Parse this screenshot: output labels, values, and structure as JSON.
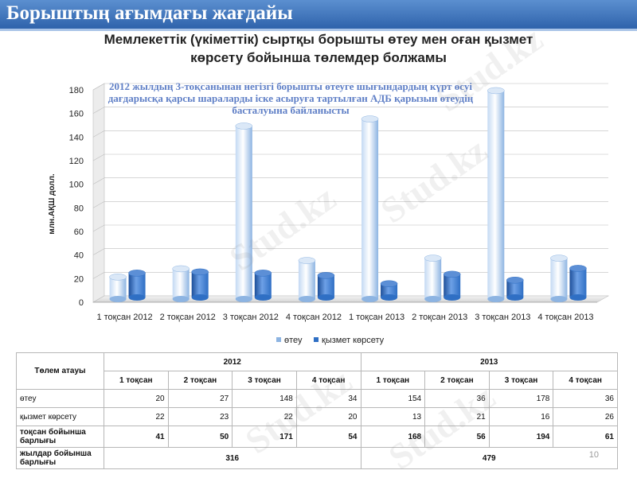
{
  "header": {
    "title": "Борыштың ағымдағы жағдайы"
  },
  "chart_title": {
    "line1": "Мемлекеттік (үкіметтік) сыртқы борышты өтеу мен оған қызмет",
    "line2": "көрсету бойынша төлемдер болжамы"
  },
  "annotation": "2012 жылдың 3-тоқсанынан негізгі борышты өтеуге шығындардың күрт өсуі дағдарысқа қарсы шараларды іске асыруға тартылған АДБ қарызын өтеудің басталуына байланысты",
  "chart_data": {
    "type": "bar",
    "ylabel": "млн.АҚШ долл.",
    "ylim": [
      0,
      180
    ],
    "yticks": [
      0,
      20,
      40,
      60,
      80,
      100,
      120,
      140,
      160,
      180
    ],
    "categories": [
      "1 тоқсан 2012",
      "2 тоқсан 2012",
      "3 тоқсан 2012",
      "4 тоқсан 2012",
      "1 тоқсан 2013",
      "2 тоқсан 2013",
      "3 тоқсан 2013",
      "4 тоқсан 2013"
    ],
    "series": [
      {
        "name": "өтеу",
        "values": [
          20,
          27,
          148,
          34,
          154,
          36,
          178,
          36
        ],
        "color": "#8db4e2"
      },
      {
        "name": "қызмет көрсету",
        "values": [
          22,
          23,
          22,
          20,
          13,
          21,
          16,
          26
        ],
        "color": "#2f6fc4"
      }
    ],
    "legend": "bottom",
    "grid": true
  },
  "table": {
    "header_label": "Төлем атауы",
    "years": [
      "2012",
      "2013"
    ],
    "quarters": [
      "1 тоқсан",
      "2 тоқсан",
      "3 тоқсан",
      "4 тоқсан",
      "1 тоқсан",
      "2 тоқсан",
      "3 тоқсан",
      "4 тоқсан"
    ],
    "rows": [
      {
        "label": "өтеу",
        "values": [
          "20",
          "27",
          "148",
          "34",
          "154",
          "36",
          "178",
          "36"
        ],
        "bold": false
      },
      {
        "label": "қызмет көрсету",
        "values": [
          "22",
          "23",
          "22",
          "20",
          "13",
          "21",
          "16",
          "26"
        ],
        "bold": false
      },
      {
        "label": "тоқсан бойынша барлығы",
        "values": [
          "41",
          "50",
          "171",
          "54",
          "168",
          "56",
          "194",
          "61"
        ],
        "bold": true
      },
      {
        "label": "жылдар бойынша барлығы",
        "values": [
          "316",
          "479"
        ],
        "bold": true
      }
    ]
  },
  "page_number": "10",
  "watermark": "Stud.kz"
}
